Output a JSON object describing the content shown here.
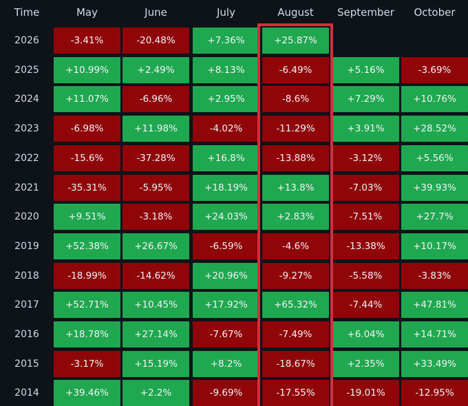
{
  "header": {
    "time_label": "Time",
    "months": [
      "May",
      "June",
      "July",
      "August",
      "September",
      "October"
    ]
  },
  "colors": {
    "positive": "#1fa850",
    "negative": "#8f0508",
    "highlight": "#d42d3c",
    "background": "#0e1219"
  },
  "highlighted_month": "August",
  "chart_data": {
    "type": "table",
    "columns": [
      "Time",
      "May",
      "June",
      "July",
      "August",
      "September",
      "October"
    ],
    "rows": [
      {
        "year": "2026",
        "cells": [
          "-3.41%",
          "-20.48%",
          "+7.36%",
          "+25.87%",
          "",
          ""
        ]
      },
      {
        "year": "2025",
        "cells": [
          "+10.99%",
          "+2.49%",
          "+8.13%",
          "-6.49%",
          "+5.16%",
          "-3.69%"
        ]
      },
      {
        "year": "2024",
        "cells": [
          "+11.07%",
          "-6.96%",
          "+2.95%",
          "-8.6%",
          "+7.29%",
          "+10.76%"
        ]
      },
      {
        "year": "2023",
        "cells": [
          "-6.98%",
          "+11.98%",
          "-4.02%",
          "-11.29%",
          "+3.91%",
          "+28.52%"
        ]
      },
      {
        "year": "2022",
        "cells": [
          "-15.6%",
          "-37.28%",
          "+16.8%",
          "-13.88%",
          "-3.12%",
          "+5.56%"
        ]
      },
      {
        "year": "2021",
        "cells": [
          "-35.31%",
          "-5.95%",
          "+18.19%",
          "+13.8%",
          "-7.03%",
          "+39.93%"
        ]
      },
      {
        "year": "2020",
        "cells": [
          "+9.51%",
          "-3.18%",
          "+24.03%",
          "+2.83%",
          "-7.51%",
          "+27.7%"
        ]
      },
      {
        "year": "2019",
        "cells": [
          "+52.38%",
          "+26.67%",
          "-6.59%",
          "-4.6%",
          "-13.38%",
          "+10.17%"
        ]
      },
      {
        "year": "2018",
        "cells": [
          "-18.99%",
          "-14.62%",
          "+20.96%",
          "-9.27%",
          "-5.58%",
          "-3.83%"
        ]
      },
      {
        "year": "2017",
        "cells": [
          "+52.71%",
          "+10.45%",
          "+17.92%",
          "+65.32%",
          "-7.44%",
          "+47.81%"
        ]
      },
      {
        "year": "2016",
        "cells": [
          "+18.78%",
          "+27.14%",
          "-7.67%",
          "-7.49%",
          "+6.04%",
          "+14.71%"
        ]
      },
      {
        "year": "2015",
        "cells": [
          "-3.17%",
          "+15.19%",
          "+8.2%",
          "-18.67%",
          "+2.35%",
          "+33.49%"
        ]
      },
      {
        "year": "2014",
        "cells": [
          "+39.46%",
          "+2.2%",
          "-9.69%",
          "-17.55%",
          "-19.01%",
          "-12.95%"
        ]
      }
    ]
  }
}
